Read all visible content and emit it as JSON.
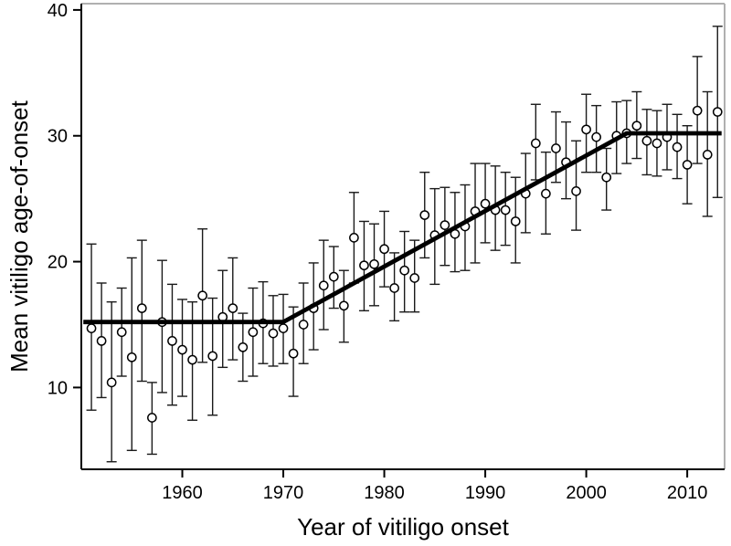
{
  "chart_data": {
    "type": "scatter",
    "title": "",
    "xlabel": "Year of vitiligo onset",
    "ylabel": "Mean vitiligo age-of-onset",
    "xlim": [
      1950,
      2013.7
    ],
    "ylim": [
      3.5,
      40.5
    ],
    "x_ticks": [
      1960,
      1970,
      1980,
      1990,
      2000,
      2010
    ],
    "y_ticks": [
      10,
      20,
      30,
      40
    ],
    "grid": false,
    "legend_position": "none",
    "marker": "open-circle",
    "colors": {
      "marker_stroke": "#000000",
      "marker_fill": "#ffffff",
      "error_bar": "#1a1a1a",
      "trend_line": "#000000",
      "axis": "#000000",
      "frame_top_right": "#b0b0b0"
    },
    "series": [
      {
        "name": "mean-age-of-onset-with-95pct-ci",
        "points": [
          {
            "year": 1951,
            "mean": 14.7,
            "lo": 8.2,
            "hi": 21.4
          },
          {
            "year": 1952,
            "mean": 13.7,
            "lo": 9.2,
            "hi": 18.3
          },
          {
            "year": 1953,
            "mean": 10.4,
            "lo": 4.1,
            "hi": 16.8
          },
          {
            "year": 1954,
            "mean": 14.4,
            "lo": 10.9,
            "hi": 17.9
          },
          {
            "year": 1955,
            "mean": 12.4,
            "lo": 5.0,
            "hi": 20.3
          },
          {
            "year": 1956,
            "mean": 16.3,
            "lo": 10.5,
            "hi": 21.7
          },
          {
            "year": 1957,
            "mean": 7.6,
            "lo": 4.7,
            "hi": 10.4
          },
          {
            "year": 1958,
            "mean": 15.2,
            "lo": 9.6,
            "hi": 20.1
          },
          {
            "year": 1959,
            "mean": 13.7,
            "lo": 8.6,
            "hi": 18.2
          },
          {
            "year": 1960,
            "mean": 13.0,
            "lo": 9.3,
            "hi": 17.0
          },
          {
            "year": 1961,
            "mean": 12.2,
            "lo": 7.4,
            "hi": 16.8
          },
          {
            "year": 1962,
            "mean": 17.3,
            "lo": 12.0,
            "hi": 22.6
          },
          {
            "year": 1963,
            "mean": 12.5,
            "lo": 7.8,
            "hi": 17.1
          },
          {
            "year": 1964,
            "mean": 15.6,
            "lo": 11.6,
            "hi": 19.3
          },
          {
            "year": 1965,
            "mean": 16.3,
            "lo": 12.2,
            "hi": 20.3
          },
          {
            "year": 1966,
            "mean": 13.2,
            "lo": 10.5,
            "hi": 15.9
          },
          {
            "year": 1967,
            "mean": 14.4,
            "lo": 10.9,
            "hi": 17.9
          },
          {
            "year": 1968,
            "mean": 15.1,
            "lo": 11.9,
            "hi": 18.4
          },
          {
            "year": 1969,
            "mean": 14.3,
            "lo": 11.7,
            "hi": 17.3
          },
          {
            "year": 1970,
            "mean": 14.7,
            "lo": 11.9,
            "hi": 17.4
          },
          {
            "year": 1971,
            "mean": 12.7,
            "lo": 9.3,
            "hi": 16.4
          },
          {
            "year": 1972,
            "mean": 15.0,
            "lo": 11.9,
            "hi": 18.3
          },
          {
            "year": 1973,
            "mean": 16.3,
            "lo": 13.0,
            "hi": 19.9
          },
          {
            "year": 1974,
            "mean": 18.1,
            "lo": 14.6,
            "hi": 21.7
          },
          {
            "year": 1975,
            "mean": 18.8,
            "lo": 16.3,
            "hi": 21.2
          },
          {
            "year": 1976,
            "mean": 16.5,
            "lo": 13.6,
            "hi": 19.3
          },
          {
            "year": 1977,
            "mean": 21.9,
            "lo": 18.3,
            "hi": 25.5
          },
          {
            "year": 1978,
            "mean": 19.7,
            "lo": 16.1,
            "hi": 23.2
          },
          {
            "year": 1979,
            "mean": 19.8,
            "lo": 16.5,
            "hi": 23.0
          },
          {
            "year": 1980,
            "mean": 21.0,
            "lo": 18.0,
            "hi": 24.0
          },
          {
            "year": 1981,
            "mean": 17.9,
            "lo": 15.3,
            "hi": 20.7
          },
          {
            "year": 1982,
            "mean": 19.3,
            "lo": 16.0,
            "hi": 22.4
          },
          {
            "year": 1983,
            "mean": 18.7,
            "lo": 16.0,
            "hi": 21.7
          },
          {
            "year": 1984,
            "mean": 23.7,
            "lo": 20.3,
            "hi": 27.1
          },
          {
            "year": 1985,
            "mean": 22.1,
            "lo": 18.2,
            "hi": 25.8
          },
          {
            "year": 1986,
            "mean": 22.9,
            "lo": 19.7,
            "hi": 25.9
          },
          {
            "year": 1987,
            "mean": 22.2,
            "lo": 19.2,
            "hi": 25.5
          },
          {
            "year": 1988,
            "mean": 22.8,
            "lo": 19.3,
            "hi": 26.1
          },
          {
            "year": 1989,
            "mean": 24.0,
            "lo": 19.9,
            "hi": 27.8
          },
          {
            "year": 1990,
            "mean": 24.6,
            "lo": 21.5,
            "hi": 27.8
          },
          {
            "year": 1991,
            "mean": 24.1,
            "lo": 20.9,
            "hi": 27.6
          },
          {
            "year": 1992,
            "mean": 24.1,
            "lo": 21.3,
            "hi": 27.1
          },
          {
            "year": 1993,
            "mean": 23.2,
            "lo": 19.9,
            "hi": 26.7
          },
          {
            "year": 1994,
            "mean": 25.4,
            "lo": 22.3,
            "hi": 28.6
          },
          {
            "year": 1995,
            "mean": 29.4,
            "lo": 26.5,
            "hi": 32.5
          },
          {
            "year": 1996,
            "mean": 25.4,
            "lo": 22.2,
            "hi": 28.7
          },
          {
            "year": 1997,
            "mean": 29.0,
            "lo": 26.3,
            "hi": 31.9
          },
          {
            "year": 1998,
            "mean": 27.9,
            "lo": 25.0,
            "hi": 31.1
          },
          {
            "year": 1999,
            "mean": 25.6,
            "lo": 22.5,
            "hi": 29.6
          },
          {
            "year": 2000,
            "mean": 30.5,
            "lo": 27.1,
            "hi": 33.3
          },
          {
            "year": 2001,
            "mean": 29.9,
            "lo": 27.1,
            "hi": 32.4
          },
          {
            "year": 2002,
            "mean": 26.7,
            "lo": 24.1,
            "hi": 29.0
          },
          {
            "year": 2003,
            "mean": 30.0,
            "lo": 27.0,
            "hi": 32.7
          },
          {
            "year": 2004,
            "mean": 30.2,
            "lo": 27.8,
            "hi": 32.8
          },
          {
            "year": 2005,
            "mean": 30.8,
            "lo": 28.2,
            "hi": 33.5
          },
          {
            "year": 2006,
            "mean": 29.6,
            "lo": 26.9,
            "hi": 32.1
          },
          {
            "year": 2007,
            "mean": 29.4,
            "lo": 26.8,
            "hi": 32.0
          },
          {
            "year": 2008,
            "mean": 29.9,
            "lo": 27.3,
            "hi": 32.5
          },
          {
            "year": 2009,
            "mean": 29.1,
            "lo": 26.6,
            "hi": 31.7
          },
          {
            "year": 2010,
            "mean": 27.7,
            "lo": 24.6,
            "hi": 30.8
          },
          {
            "year": 2011,
            "mean": 32.0,
            "lo": 27.8,
            "hi": 36.3
          },
          {
            "year": 2012,
            "mean": 28.5,
            "lo": 23.6,
            "hi": 33.5
          },
          {
            "year": 2013,
            "mean": 31.9,
            "lo": 25.1,
            "hi": 38.7
          }
        ]
      }
    ],
    "trend_line": {
      "name": "piecewise-linear-fit",
      "points": [
        [
          1950.2,
          15.2
        ],
        [
          1970,
          15.2
        ],
        [
          2004,
          30.2
        ],
        [
          2013.4,
          30.2
        ]
      ]
    }
  }
}
